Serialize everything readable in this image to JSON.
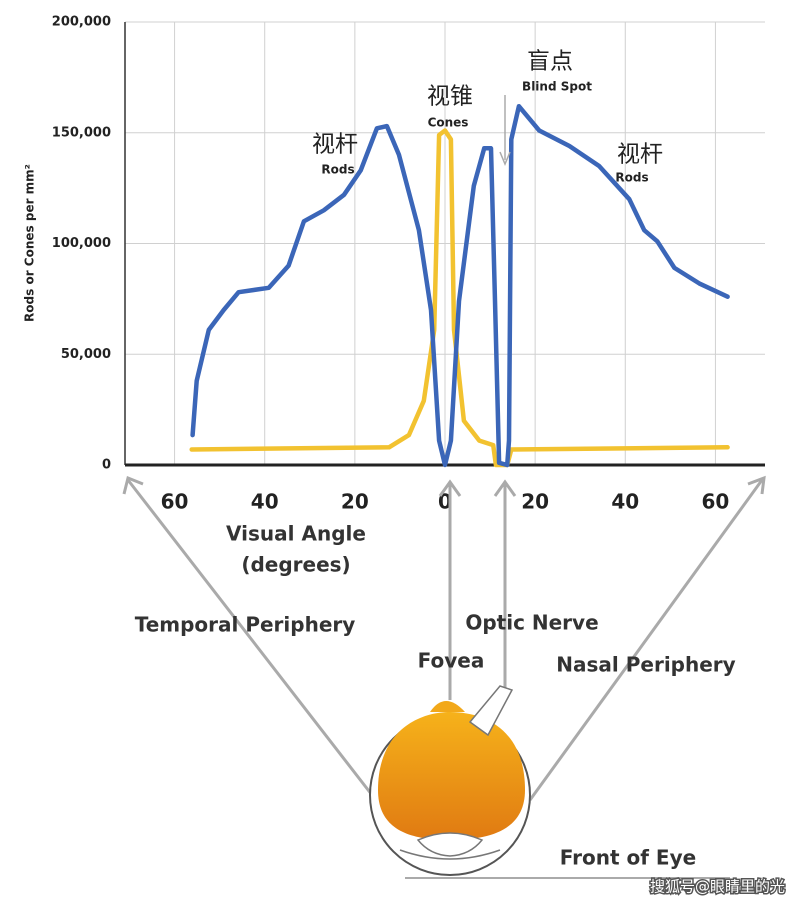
{
  "chart_data": {
    "type": "line",
    "y_label": "Rods or Cones per mm²",
    "x_label": [
      "Visual Angle",
      "(degrees)"
    ],
    "xlim": [
      -71,
      71
    ],
    "ylim": [
      0,
      200000
    ],
    "xticks": [
      {
        "value": -60,
        "label": "60"
      },
      {
        "value": -40,
        "label": "40"
      },
      {
        "value": -20,
        "label": "20"
      },
      0,
      20,
      40,
      60
    ],
    "yticks": [
      0,
      {
        "value": 50000,
        "label": "50,000"
      },
      {
        "value": 100000,
        "label": "100,000"
      },
      {
        "value": 150000,
        "label": "150,000"
      },
      {
        "value": 200000,
        "label": "200,000"
      }
    ],
    "grid": true,
    "series": [
      {
        "name": "Rods",
        "color": "#3b66b8",
        "x": [
          -56,
          -55.1,
          -52.4,
          -49.1,
          -45.8,
          -39.1,
          -34.7,
          -31.3,
          -26.9,
          -22.4,
          -18.7,
          -15.1,
          -12.9,
          -10.2,
          -5.8,
          -3.1,
          -1.3,
          0,
          1.3,
          3.1,
          6.4,
          8.7,
          10.2,
          11.1,
          12,
          13.8,
          14.2,
          14.7,
          16.4,
          20.9,
          27.6,
          34.2,
          40.9,
          44.2,
          47.1,
          50.9,
          56.4,
          62.7
        ],
        "values": [
          13500,
          38000,
          61000,
          70000,
          78000,
          80000,
          90000,
          110000,
          115000,
          122000,
          133000,
          152000,
          153000,
          140000,
          106000,
          70000,
          11000,
          0,
          11000,
          74000,
          126000,
          143000,
          143000,
          74000,
          1000,
          0,
          11000,
          147000,
          162000,
          151000,
          144000,
          135000,
          120000,
          106000,
          101000,
          89000,
          82000,
          76000
        ]
      },
      {
        "name": "Cones",
        "color": "#f2c230",
        "x": [
          -56.2,
          -12.4,
          -8,
          -4.7,
          -2.4,
          -1.3,
          0,
          1.3,
          2,
          4.2,
          7.6,
          10.7,
          11.3,
          13.8,
          14.7,
          62.7
        ],
        "values": [
          7000,
          8000,
          13500,
          29000,
          61000,
          149000,
          151000,
          147000,
          61000,
          20000,
          11000,
          9000,
          0,
          0,
          7000,
          8000
        ]
      }
    ],
    "annotations": [
      {
        "text": "视杆",
        "sub": "Rods"
      },
      {
        "text": "视锥",
        "sub": "Cones"
      },
      {
        "text": "盲点",
        "sub": "Blind Spot"
      },
      {
        "text": "视杆",
        "sub": "Rods"
      }
    ]
  },
  "diagram": {
    "labels": [
      "Temporal Periphery",
      "Fovea",
      "Optic Nerve",
      "Nasal Periphery",
      "Front of Eye"
    ],
    "watermark": "搜狐号@眼睛里的光"
  }
}
